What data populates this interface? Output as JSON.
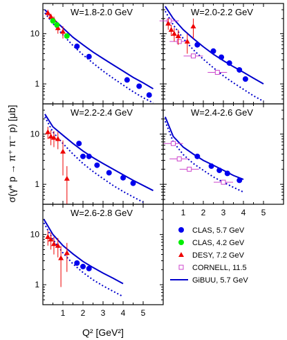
{
  "chart_data": {
    "type": "scatter",
    "ylabel": "σ(γ* p → π⁺ π⁻ p) [μb]",
    "xlabel": "Q² [GeV²]",
    "xlim": [
      0,
      6
    ],
    "ylim": [
      0.4,
      40
    ],
    "yscale": "log",
    "x_ticks": [
      "1",
      "2",
      "3",
      "4",
      "5"
    ],
    "y_ticks": [
      "1",
      "10"
    ],
    "legend": {
      "placement": "bottom-right",
      "entries": [
        {
          "key": "clas57",
          "label": "CLAS, 5.7 GeV",
          "marker": "circle",
          "color": "#0000ee"
        },
        {
          "key": "clas42",
          "label": "CLAS, 4.2 GeV",
          "marker": "circle",
          "color": "#00ee00"
        },
        {
          "key": "desy",
          "label": "DESY, 7.2 GeV",
          "marker": "triangle",
          "color": "#ee0000"
        },
        {
          "key": "cornell",
          "label": "CORNELL, 11.5",
          "marker": "open-square",
          "color": "#cc44cc"
        },
        {
          "key": "gibuu",
          "label": "GiBUU, 5.7 GeV",
          "marker": "line",
          "color": "#0000cc"
        }
      ]
    },
    "panels": [
      {
        "label": "W=1.8-2.0 GeV",
        "clas57": [
          [
            1.7,
            5.6
          ],
          [
            2.3,
            3.5
          ],
          [
            4.2,
            1.2
          ],
          [
            4.8,
            0.9
          ],
          [
            5.3,
            0.6
          ]
        ],
        "clas42": [
          [
            0.5,
            18
          ],
          [
            0.7,
            15
          ],
          [
            1.2,
            9
          ]
        ],
        "desy": [
          [
            0.25,
            26
          ],
          [
            0.4,
            22
          ],
          [
            0.55,
            19
          ],
          [
            0.75,
            13
          ],
          [
            1.0,
            11
          ]
        ],
        "desy_err": [
          [
            0.25,
            26,
            4
          ],
          [
            0.4,
            22,
            3
          ],
          [
            0.55,
            19,
            3
          ],
          [
            0.75,
            13,
            3
          ],
          [
            1.0,
            11,
            3
          ]
        ],
        "cornell": [],
        "gibuu_solid": [
          [
            0.1,
            30
          ],
          [
            0.5,
            20
          ],
          [
            1,
            13
          ],
          [
            1.5,
            8.5
          ],
          [
            2,
            6
          ],
          [
            2.5,
            4.3
          ],
          [
            3,
            3.2
          ],
          [
            3.5,
            2.4
          ],
          [
            4,
            1.8
          ],
          [
            4.5,
            1.35
          ],
          [
            5,
            1.05
          ],
          [
            5.5,
            0.8
          ]
        ],
        "gibuu_dashed": [
          [
            0.1,
            26
          ],
          [
            0.5,
            16
          ],
          [
            1,
            9.5
          ],
          [
            1.5,
            5.8
          ],
          [
            2,
            3.8
          ],
          [
            2.5,
            2.6
          ],
          [
            3,
            1.8
          ],
          [
            3.5,
            1.3
          ],
          [
            4,
            0.95
          ],
          [
            4.5,
            0.7
          ],
          [
            5,
            0.53
          ],
          [
            5.5,
            0.42
          ]
        ]
      },
      {
        "label": "W=2.0-2.2 GeV",
        "clas57": [
          [
            1.7,
            6.0
          ],
          [
            2.5,
            4.5
          ],
          [
            2.9,
            3.4
          ],
          [
            3.3,
            2.6
          ],
          [
            3.8,
            1.9
          ],
          [
            4.1,
            1.25
          ]
        ],
        "clas42": [],
        "desy": [
          [
            0.25,
            16
          ],
          [
            0.4,
            12
          ],
          [
            0.55,
            10
          ],
          [
            0.75,
            9
          ],
          [
            1.2,
            7
          ],
          [
            1.5,
            14
          ]
        ],
        "desy_err": [
          [
            0.25,
            16,
            4
          ],
          [
            0.4,
            12,
            3
          ],
          [
            0.55,
            10,
            3
          ],
          [
            0.75,
            9,
            3
          ],
          [
            1.2,
            7,
            3
          ],
          [
            1.5,
            14,
            6
          ]
        ],
        "cornell": [
          [
            0.3,
            18
          ],
          [
            0.8,
            7
          ],
          [
            1.5,
            3.6
          ],
          [
            2.7,
            1.7
          ]
        ],
        "gibuu_solid": [
          [
            0.1,
            35
          ],
          [
            0.5,
            20
          ],
          [
            1,
            12
          ],
          [
            1.5,
            8
          ],
          [
            2,
            5.5
          ],
          [
            2.5,
            3.9
          ],
          [
            3,
            2.9
          ],
          [
            3.5,
            2.2
          ],
          [
            4,
            1.7
          ],
          [
            4.5,
            1.3
          ],
          [
            5,
            1.0
          ]
        ],
        "gibuu_dashed": [
          [
            0.1,
            28
          ],
          [
            0.5,
            15
          ],
          [
            1,
            8
          ],
          [
            1.5,
            4.8
          ],
          [
            2,
            3.1
          ],
          [
            2.5,
            2.1
          ],
          [
            3,
            1.45
          ],
          [
            3.5,
            1.05
          ],
          [
            4,
            0.78
          ],
          [
            4.5,
            0.58
          ],
          [
            5,
            0.45
          ]
        ]
      },
      {
        "label": "W=2.2-2.4 GeV",
        "clas57": [
          [
            1.8,
            6.5
          ],
          [
            2.0,
            3.6
          ],
          [
            2.3,
            3.6
          ],
          [
            2.7,
            2.4
          ],
          [
            3.3,
            1.7
          ],
          [
            4.0,
            1.35
          ],
          [
            4.5,
            1.05
          ]
        ],
        "clas42": [],
        "desy": [
          [
            0.25,
            11
          ],
          [
            0.4,
            9
          ],
          [
            0.55,
            8.5
          ],
          [
            0.75,
            8
          ],
          [
            1.0,
            4.5
          ],
          [
            1.2,
            1.3
          ]
        ],
        "desy_err": [
          [
            0.25,
            11,
            3
          ],
          [
            0.4,
            9,
            3
          ],
          [
            0.55,
            8.5,
            3
          ],
          [
            0.75,
            8,
            3
          ],
          [
            1.0,
            4.5,
            3
          ],
          [
            1.2,
            1.3,
            1.0
          ]
        ],
        "cornell": [],
        "gibuu_solid": [
          [
            0.1,
            25
          ],
          [
            0.5,
            14
          ],
          [
            1,
            9.5
          ],
          [
            1.5,
            6.5
          ],
          [
            2,
            4.6
          ],
          [
            2.5,
            3.4
          ],
          [
            3,
            2.6
          ],
          [
            3.5,
            2.0
          ],
          [
            4,
            1.55
          ],
          [
            4.5,
            1.2
          ],
          [
            5,
            0.95
          ],
          [
            5.5,
            0.75
          ]
        ],
        "gibuu_dashed": [
          [
            0.1,
            22
          ],
          [
            0.5,
            11
          ],
          [
            1,
            6.5
          ],
          [
            1.5,
            4.0
          ],
          [
            2,
            2.6
          ],
          [
            2.5,
            1.8
          ],
          [
            3,
            1.3
          ],
          [
            3.5,
            0.95
          ],
          [
            4,
            0.72
          ],
          [
            4.5,
            0.56
          ],
          [
            5,
            0.44
          ]
        ]
      },
      {
        "label": "W=2.4-2.6 GeV",
        "clas57": [
          [
            1.7,
            3.6
          ],
          [
            2.4,
            2.3
          ],
          [
            2.8,
            1.9
          ],
          [
            3.2,
            1.65
          ],
          [
            3.8,
            1.2
          ]
        ],
        "clas42": [],
        "desy": [],
        "desy_err": [],
        "cornell": [
          [
            0.5,
            6.5
          ],
          [
            0.8,
            3.2
          ],
          [
            1.3,
            2.0
          ],
          [
            3.0,
            1.1
          ]
        ],
        "gibuu_solid": [
          [
            0.1,
            22
          ],
          [
            0.5,
            9
          ],
          [
            1,
            5.5
          ],
          [
            1.5,
            4.0
          ],
          [
            2,
            3.0
          ],
          [
            2.5,
            2.4
          ],
          [
            3,
            1.9
          ],
          [
            3.5,
            1.5
          ],
          [
            4,
            1.25
          ]
        ],
        "gibuu_dashed": [
          [
            0.1,
            18
          ],
          [
            0.5,
            7
          ],
          [
            1,
            3.9
          ],
          [
            1.5,
            2.6
          ],
          [
            2,
            1.9
          ],
          [
            2.5,
            1.4
          ],
          [
            3,
            1.1
          ],
          [
            3.5,
            0.87
          ],
          [
            4,
            0.7
          ]
        ]
      },
      {
        "label": "W=2.6-2.8 GeV",
        "clas57": [
          [
            1.7,
            2.7
          ],
          [
            2.0,
            2.3
          ],
          [
            2.3,
            2.1
          ]
        ],
        "clas42": [],
        "desy": [
          [
            0.25,
            9
          ],
          [
            0.4,
            8
          ],
          [
            0.55,
            6.5
          ],
          [
            0.75,
            6
          ],
          [
            0.9,
            3.4
          ],
          [
            1.2,
            4.3
          ]
        ],
        "desy_err": [
          [
            0.25,
            9,
            3
          ],
          [
            0.4,
            8,
            3
          ],
          [
            0.55,
            6.5,
            2.5
          ],
          [
            0.75,
            6,
            2.5
          ],
          [
            0.9,
            3.4,
            2.5
          ],
          [
            1.2,
            4.3,
            2.5
          ]
        ],
        "cornell": [],
        "gibuu_solid": [
          [
            0.05,
            20
          ],
          [
            0.5,
            10
          ],
          [
            1,
            6
          ],
          [
            1.5,
            4.1
          ],
          [
            2,
            2.9
          ],
          [
            2.5,
            2.2
          ],
          [
            3,
            1.7
          ],
          [
            3.5,
            1.35
          ],
          [
            4,
            1.05
          ]
        ],
        "gibuu_dashed": [
          [
            0.05,
            17
          ],
          [
            0.5,
            8
          ],
          [
            1,
            4.3
          ],
          [
            1.5,
            2.6
          ],
          [
            2,
            1.75
          ],
          [
            2.5,
            1.25
          ],
          [
            3,
            0.95
          ],
          [
            3.5,
            0.74
          ],
          [
            4,
            0.58
          ]
        ]
      }
    ]
  }
}
